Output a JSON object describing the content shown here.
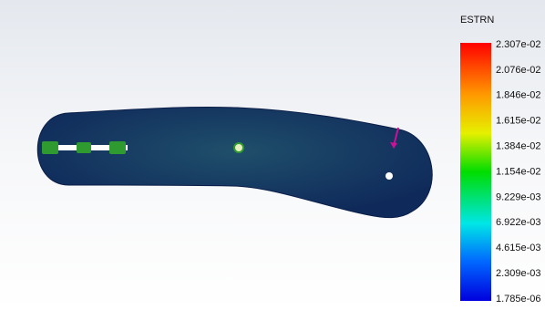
{
  "legend": {
    "title": "ESTRN",
    "labels": [
      "2.307e-02",
      "2.076e-02",
      "1.846e-02",
      "1.615e-02",
      "1.384e-02",
      "1.154e-02",
      "9.229e-03",
      "6.922e-03",
      "4.615e-03",
      "2.309e-03",
      "1.785e-06"
    ]
  }
}
